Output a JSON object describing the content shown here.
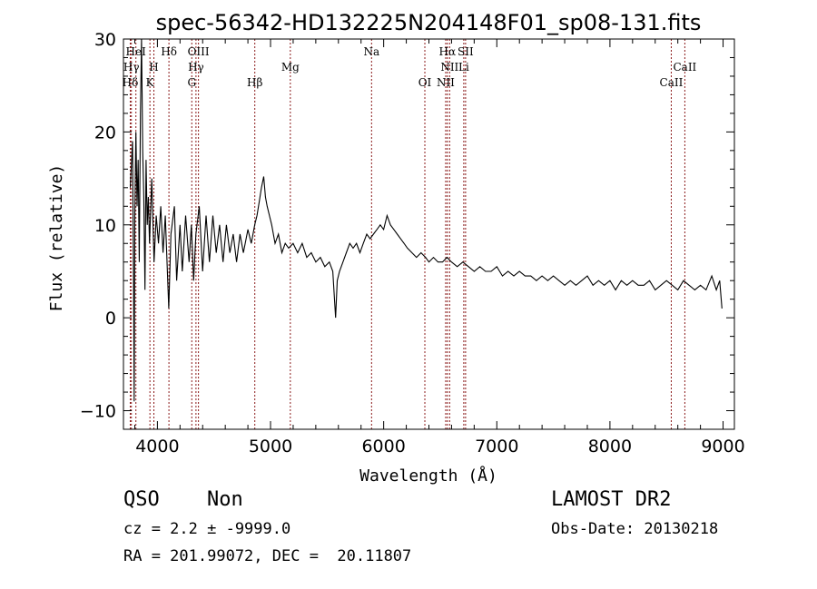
{
  "chart_data": {
    "type": "line",
    "title": "spec-56342-HD132225N204148F01_sp08-131.fits",
    "xlabel": "Wavelength (Å)",
    "ylabel": "Flux (relative)",
    "xlim": [
      3700,
      9100
    ],
    "ylim": [
      -12,
      30
    ],
    "x_ticks": [
      4000,
      5000,
      6000,
      7000,
      8000,
      9000
    ],
    "y_ticks": [
      -10,
      0,
      10,
      20,
      30
    ],
    "grid": false,
    "line_color": "#000000",
    "marker_color": "#8b1a1a",
    "series": [
      {
        "points": [
          [
            3760,
            14
          ],
          [
            3780,
            19
          ],
          [
            3790,
            3
          ],
          [
            3795,
            -9
          ],
          [
            3800,
            11
          ],
          [
            3810,
            20
          ],
          [
            3820,
            12
          ],
          [
            3830,
            17
          ],
          [
            3840,
            6
          ],
          [
            3850,
            22
          ],
          [
            3860,
            30
          ],
          [
            3870,
            18
          ],
          [
            3880,
            13
          ],
          [
            3890,
            3
          ],
          [
            3900,
            17
          ],
          [
            3910,
            10
          ],
          [
            3920,
            13
          ],
          [
            3930,
            8
          ],
          [
            3950,
            15
          ],
          [
            3970,
            6
          ],
          [
            3990,
            11
          ],
          [
            4010,
            8
          ],
          [
            4030,
            12
          ],
          [
            4050,
            7
          ],
          [
            4070,
            11
          ],
          [
            4100,
            1
          ],
          [
            4120,
            9
          ],
          [
            4150,
            12
          ],
          [
            4170,
            4
          ],
          [
            4200,
            10
          ],
          [
            4220,
            5
          ],
          [
            4250,
            11
          ],
          [
            4280,
            6
          ],
          [
            4300,
            10
          ],
          [
            4320,
            4
          ],
          [
            4340,
            9
          ],
          [
            4370,
            12
          ],
          [
            4400,
            5
          ],
          [
            4430,
            11
          ],
          [
            4460,
            6
          ],
          [
            4490,
            11
          ],
          [
            4520,
            7
          ],
          [
            4550,
            10
          ],
          [
            4580,
            6
          ],
          [
            4610,
            10
          ],
          [
            4640,
            7
          ],
          [
            4670,
            9
          ],
          [
            4700,
            6
          ],
          [
            4730,
            9
          ],
          [
            4760,
            7
          ],
          [
            4800,
            9.5
          ],
          [
            4830,
            8
          ],
          [
            4860,
            10
          ],
          [
            4880,
            11
          ],
          [
            4900,
            12.5
          ],
          [
            4920,
            14
          ],
          [
            4940,
            15.2
          ],
          [
            4955,
            13
          ],
          [
            4970,
            12
          ],
          [
            4990,
            11
          ],
          [
            5010,
            10
          ],
          [
            5040,
            8
          ],
          [
            5070,
            9
          ],
          [
            5100,
            7
          ],
          [
            5130,
            8
          ],
          [
            5160,
            7.5
          ],
          [
            5200,
            8
          ],
          [
            5240,
            7
          ],
          [
            5280,
            8
          ],
          [
            5320,
            6.5
          ],
          [
            5360,
            7
          ],
          [
            5400,
            6
          ],
          [
            5440,
            6.5
          ],
          [
            5480,
            5.5
          ],
          [
            5520,
            6
          ],
          [
            5550,
            5
          ],
          [
            5575,
            0
          ],
          [
            5590,
            4
          ],
          [
            5610,
            5
          ],
          [
            5640,
            6
          ],
          [
            5670,
            7
          ],
          [
            5700,
            8
          ],
          [
            5730,
            7.5
          ],
          [
            5760,
            8
          ],
          [
            5790,
            7
          ],
          [
            5820,
            8
          ],
          [
            5850,
            9
          ],
          [
            5880,
            8.5
          ],
          [
            5910,
            9
          ],
          [
            5940,
            9.5
          ],
          [
            5970,
            10
          ],
          [
            6000,
            9.5
          ],
          [
            6030,
            11
          ],
          [
            6060,
            10
          ],
          [
            6090,
            9.5
          ],
          [
            6120,
            9
          ],
          [
            6150,
            8.5
          ],
          [
            6180,
            8
          ],
          [
            6210,
            7.5
          ],
          [
            6250,
            7
          ],
          [
            6290,
            6.5
          ],
          [
            6330,
            7
          ],
          [
            6370,
            6.5
          ],
          [
            6400,
            6
          ],
          [
            6440,
            6.5
          ],
          [
            6480,
            6
          ],
          [
            6520,
            6
          ],
          [
            6560,
            6.5
          ],
          [
            6600,
            6
          ],
          [
            6650,
            5.5
          ],
          [
            6700,
            6
          ],
          [
            6750,
            5.5
          ],
          [
            6800,
            5
          ],
          [
            6850,
            5.5
          ],
          [
            6900,
            5
          ],
          [
            6950,
            5
          ],
          [
            7000,
            5.5
          ],
          [
            7050,
            4.5
          ],
          [
            7100,
            5
          ],
          [
            7150,
            4.5
          ],
          [
            7200,
            5
          ],
          [
            7250,
            4.5
          ],
          [
            7300,
            4.5
          ],
          [
            7350,
            4
          ],
          [
            7400,
            4.5
          ],
          [
            7450,
            4
          ],
          [
            7500,
            4.5
          ],
          [
            7550,
            4
          ],
          [
            7600,
            3.5
          ],
          [
            7650,
            4
          ],
          [
            7700,
            3.5
          ],
          [
            7750,
            4
          ],
          [
            7800,
            4.5
          ],
          [
            7850,
            3.5
          ],
          [
            7900,
            4
          ],
          [
            7950,
            3.5
          ],
          [
            8000,
            4
          ],
          [
            8050,
            3
          ],
          [
            8100,
            4
          ],
          [
            8150,
            3.5
          ],
          [
            8200,
            4
          ],
          [
            8250,
            3.5
          ],
          [
            8300,
            3.5
          ],
          [
            8350,
            4
          ],
          [
            8400,
            3
          ],
          [
            8450,
            3.5
          ],
          [
            8500,
            4
          ],
          [
            8550,
            3.5
          ],
          [
            8600,
            3
          ],
          [
            8650,
            4
          ],
          [
            8700,
            3.5
          ],
          [
            8750,
            3
          ],
          [
            8800,
            3.5
          ],
          [
            8850,
            3
          ],
          [
            8900,
            4.5
          ],
          [
            8940,
            3
          ],
          [
            8970,
            4
          ],
          [
            8990,
            1
          ]
        ]
      }
    ],
    "lines": [
      {
        "label": "Hδ",
        "x": 3760,
        "row": 3
      },
      {
        "label": "Hγ",
        "x": 3770,
        "row": 2
      },
      {
        "label": "HeI",
        "x": 3810,
        "row": 1
      },
      {
        "label": "K",
        "x": 3934,
        "row": 3
      },
      {
        "label": "H",
        "x": 3969,
        "row": 2
      },
      {
        "label": "Hδ",
        "x": 4102,
        "row": 1
      },
      {
        "label": "G",
        "x": 4304,
        "row": 3
      },
      {
        "label": "Hγ",
        "x": 4341,
        "row": 2
      },
      {
        "label": "OIII",
        "x": 4363,
        "row": 1
      },
      {
        "label": "Hβ",
        "x": 4861,
        "row": 3
      },
      {
        "label": "Mg",
        "x": 5175,
        "row": 2
      },
      {
        "label": "Na",
        "x": 5893,
        "row": 1
      },
      {
        "label": "OI",
        "x": 6364,
        "row": 3
      },
      {
        "label": "NII",
        "x": 6548,
        "row": 3
      },
      {
        "label": "NII",
        "x": 6583,
        "row": 2
      },
      {
        "label": "Hα",
        "x": 6563,
        "row": 1
      },
      {
        "label": "Li",
        "x": 6708,
        "row": 2
      },
      {
        "label": "SII",
        "x": 6724,
        "row": 1
      },
      {
        "label": "CaII",
        "x": 8542,
        "row": 3
      },
      {
        "label": "CaII",
        "x": 8662,
        "row": 2
      }
    ]
  },
  "info": {
    "class_label": "QSO",
    "subclass_label": "Non",
    "cz_line": "cz = 2.2 ± -9999.0",
    "radec_line": "RA = 201.99072, DEC =  20.11807",
    "survey_label": "LAMOST DR2",
    "obs_date_line": "Obs-Date: 20130218"
  }
}
